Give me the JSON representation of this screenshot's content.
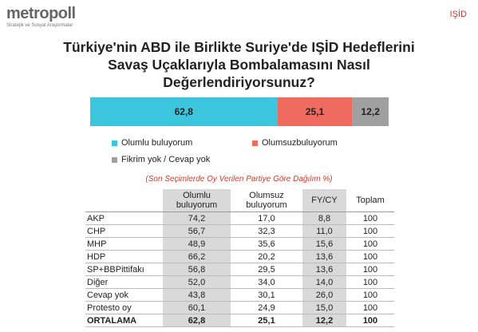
{
  "header": {
    "logo": "metropoll",
    "logo_subtitle": "Stratejik ve Sosyal Araştırmalar",
    "tag": "IŞİD"
  },
  "chart_data": {
    "type": "bar",
    "orientation": "horizontal",
    "stacked": true,
    "title": [
      "Türkiye'nin ABD ile Birlikte Suriye'de IŞİD Hedeflerini",
      "Savaş Uçaklarıyla Bombalamasını Nasıl",
      "Değerlendiriyorsunuz?"
    ],
    "categories": [
      null
    ],
    "series": [
      {
        "name": "Olumlu buluyorum",
        "color": "#3cc6de",
        "values": [
          62.8
        ],
        "value_labels": [
          "62,8"
        ]
      },
      {
        "name": "Olumsuzbuluyorum",
        "color": "#ef6a5f",
        "values": [
          25.1
        ],
        "value_labels": [
          "25,1"
        ]
      },
      {
        "name": "Fikrim yok / Cevap yok",
        "color": "#a0a0a0",
        "values": [
          12.2
        ],
        "value_labels": [
          "12,2"
        ]
      }
    ]
  },
  "table": {
    "caption": "(Son Seçimlerde Oy Verilen Partiye Göre Dağılım %)",
    "header": [
      "Olumlu buluyorum",
      "Olumsuz buluyorum",
      "FY/CY",
      "Toplam"
    ],
    "rows": [
      [
        "AKP",
        "74,2",
        "17,0",
        "8,8",
        "100"
      ],
      [
        "CHP",
        "56,7",
        "32,3",
        "11,0",
        "100"
      ],
      [
        "MHP",
        "48,9",
        "35,6",
        "15,6",
        "100"
      ],
      [
        "HDP",
        "66,2",
        "20,2",
        "13,6",
        "100"
      ],
      [
        "SP+BBPittifakı",
        "56,8",
        "29,5",
        "13,6",
        "100"
      ],
      [
        "Diğer",
        "52,0",
        "34,0",
        "14,0",
        "100"
      ],
      [
        "Cevap yok",
        "43,8",
        "30,1",
        "26,0",
        "100"
      ],
      [
        "Protesto oy",
        "60,1",
        "24,9",
        "15,0",
        "100"
      ],
      [
        "ORTALAMA",
        "62,8",
        "25,1",
        "12,2",
        "100"
      ]
    ]
  }
}
